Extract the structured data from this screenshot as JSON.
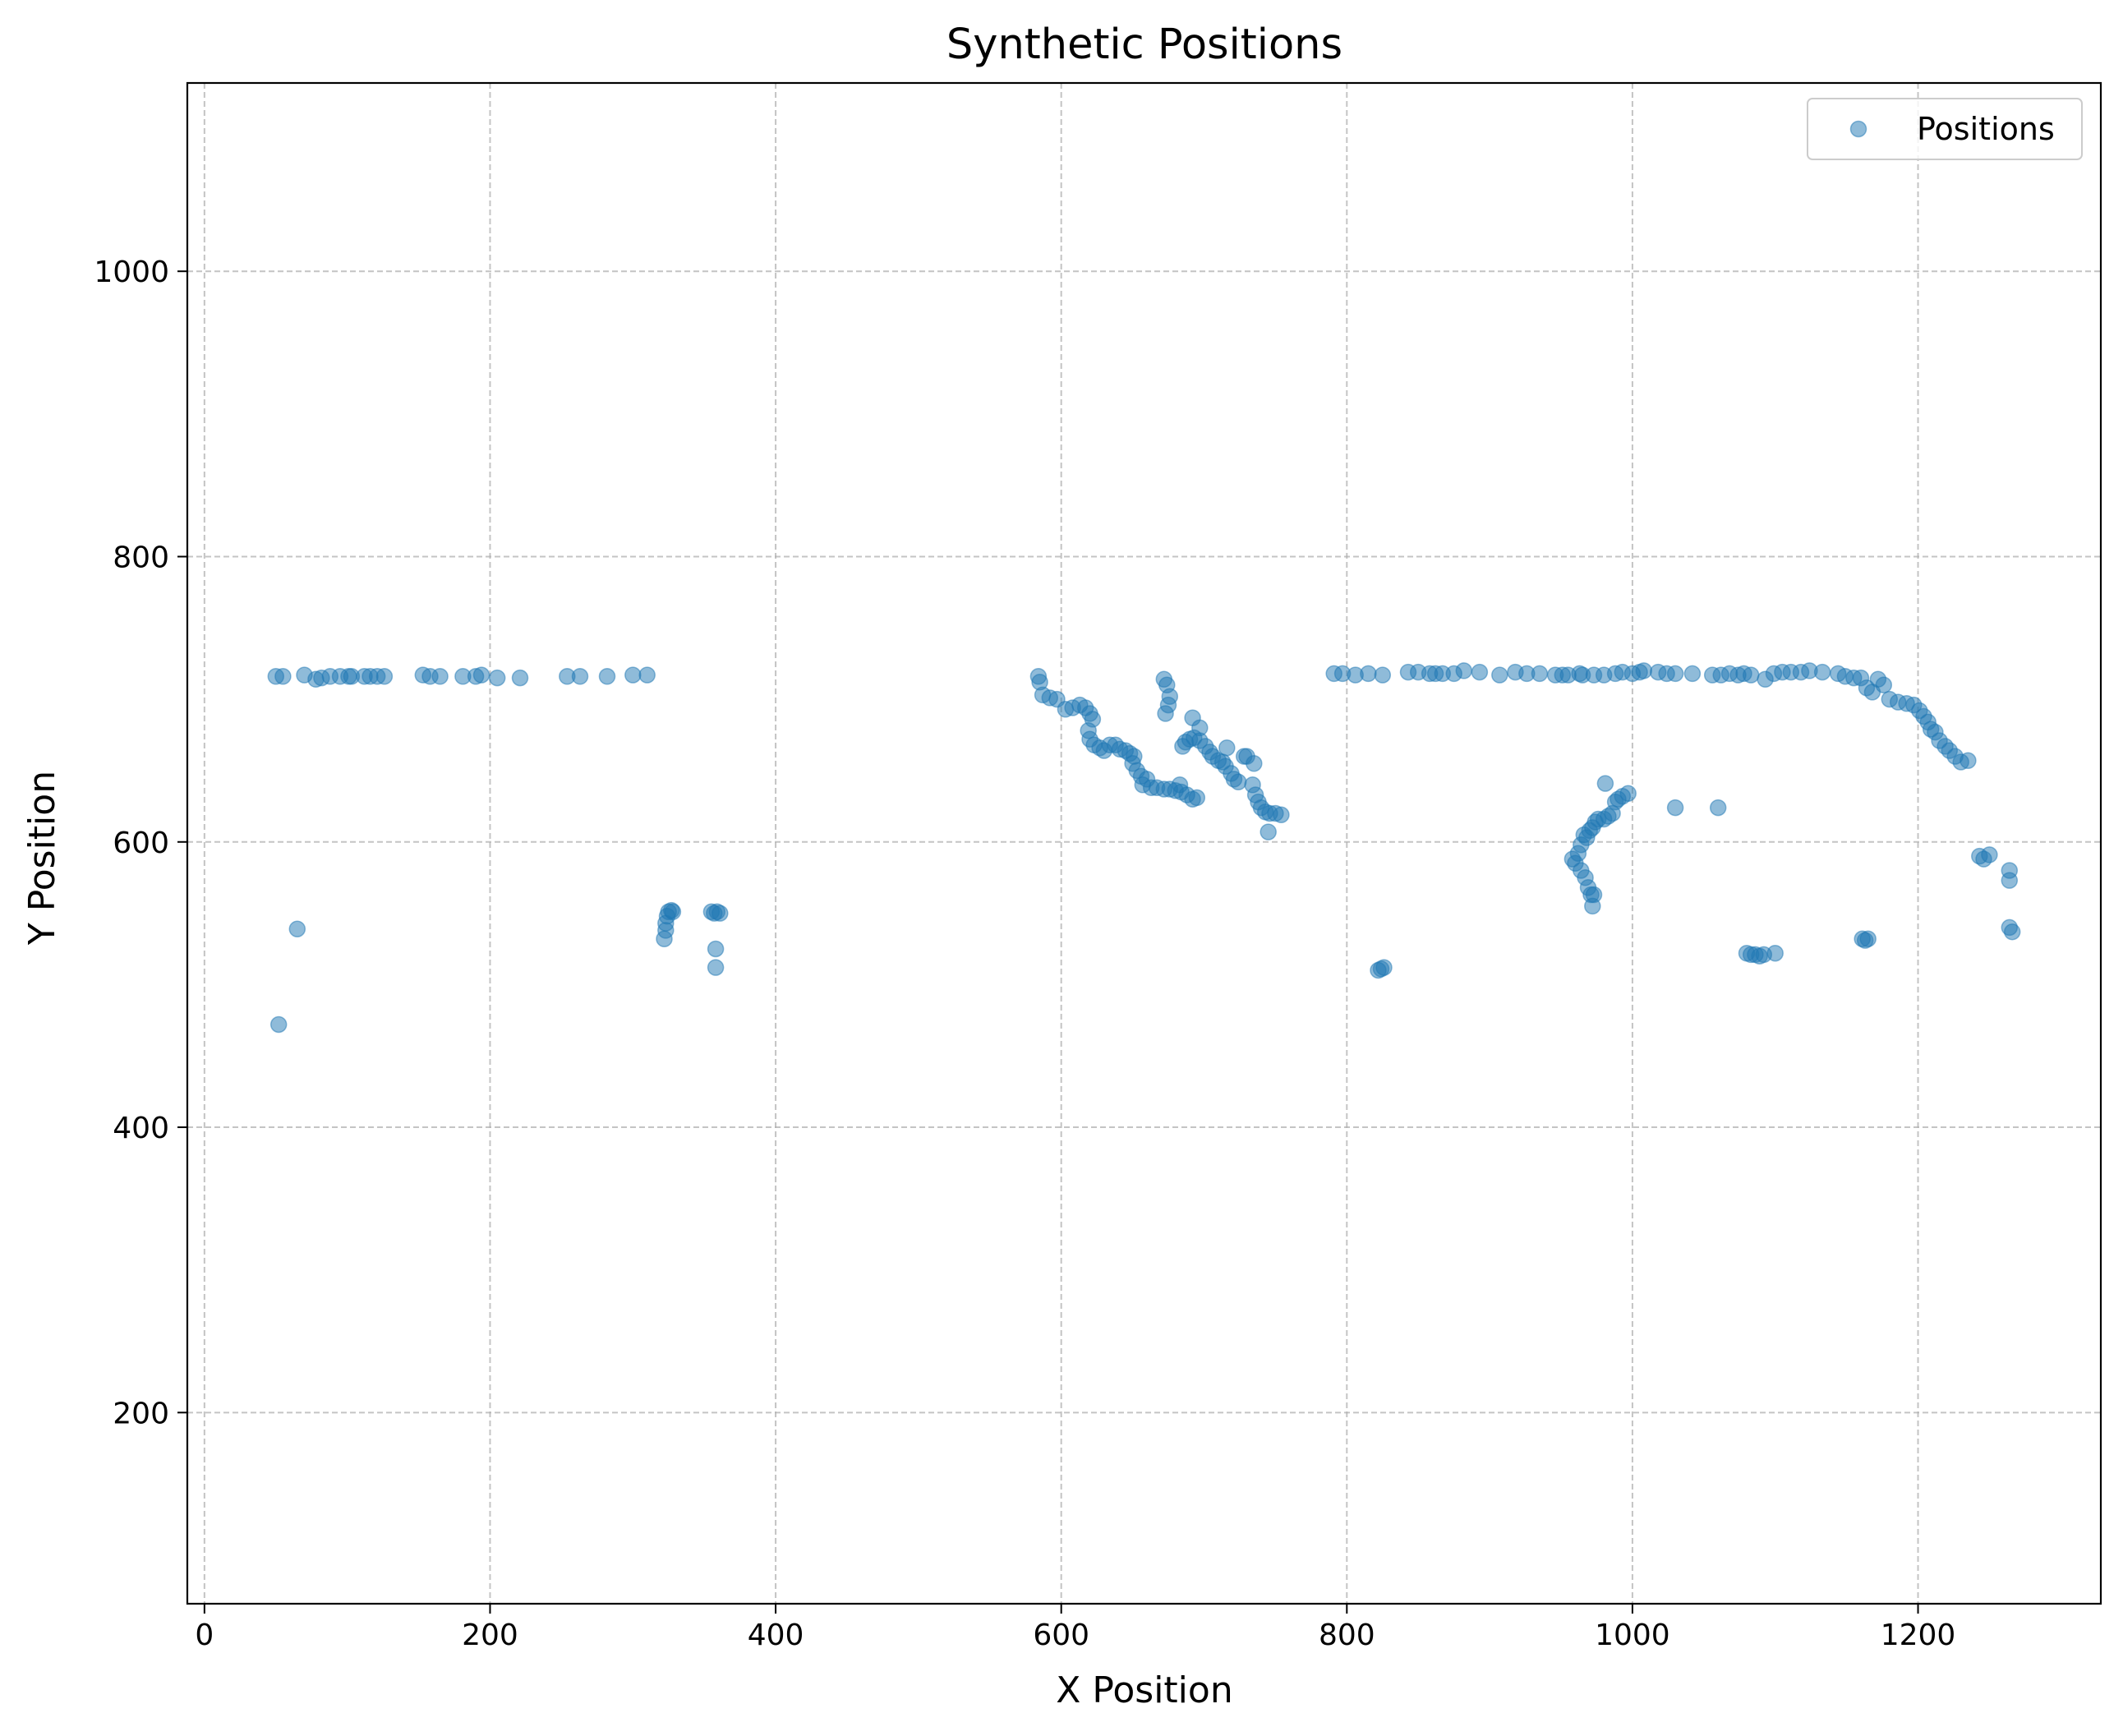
{
  "chart_data": {
    "type": "scatter",
    "title": "Synthetic Positions",
    "xlabel": "X Position",
    "ylabel": "Y Position",
    "xlim": [
      -12,
      1328
    ],
    "ylim": [
      66,
      1132
    ],
    "xticks": [
      0,
      200,
      400,
      600,
      800,
      1000,
      1200
    ],
    "yticks": [
      200,
      400,
      600,
      800,
      1000
    ],
    "grid": true,
    "legend_position": "top-right",
    "series": [
      {
        "name": "Positions",
        "color": "#1f77b4",
        "points": [
          [
            50,
            716
          ],
          [
            55,
            716
          ],
          [
            70,
            717
          ],
          [
            78,
            714
          ],
          [
            82,
            715
          ],
          [
            88,
            716
          ],
          [
            95,
            716
          ],
          [
            101,
            716
          ],
          [
            103,
            716
          ],
          [
            112,
            716
          ],
          [
            116,
            716
          ],
          [
            121,
            716
          ],
          [
            126,
            716
          ],
          [
            153,
            717
          ],
          [
            158,
            716
          ],
          [
            165,
            716
          ],
          [
            181,
            716
          ],
          [
            190,
            716
          ],
          [
            194,
            717
          ],
          [
            205,
            715
          ],
          [
            221,
            715
          ],
          [
            254,
            716
          ],
          [
            263,
            716
          ],
          [
            282,
            716
          ],
          [
            300,
            717
          ],
          [
            310,
            717
          ],
          [
            52,
            472
          ],
          [
            65,
            539
          ],
          [
            322,
            532
          ],
          [
            323,
            538
          ],
          [
            323,
            543
          ],
          [
            324,
            548
          ],
          [
            325,
            551
          ],
          [
            327,
            552
          ],
          [
            328,
            551
          ],
          [
            355,
            551
          ],
          [
            357,
            550
          ],
          [
            359,
            551
          ],
          [
            361,
            550
          ],
          [
            358,
            525
          ],
          [
            358,
            512
          ],
          [
            584,
            716
          ],
          [
            585,
            712
          ],
          [
            587,
            703
          ],
          [
            592,
            701
          ],
          [
            597,
            700
          ],
          [
            603,
            693
          ],
          [
            608,
            694
          ],
          [
            613,
            696
          ],
          [
            617,
            694
          ],
          [
            620,
            690
          ],
          [
            622,
            686
          ],
          [
            619,
            678
          ],
          [
            620,
            672
          ],
          [
            623,
            668
          ],
          [
            627,
            666
          ],
          [
            630,
            664
          ],
          [
            634,
            668
          ],
          [
            638,
            668
          ],
          [
            641,
            665
          ],
          [
            645,
            664
          ],
          [
            648,
            662
          ],
          [
            651,
            660
          ],
          [
            650,
            655
          ],
          [
            653,
            650
          ],
          [
            656,
            646
          ],
          [
            660,
            644
          ],
          [
            657,
            640
          ],
          [
            663,
            638
          ],
          [
            667,
            638
          ],
          [
            672,
            637
          ],
          [
            676,
            637
          ],
          [
            680,
            636
          ],
          [
            684,
            635
          ],
          [
            688,
            633
          ],
          [
            692,
            630
          ],
          [
            695,
            631
          ],
          [
            683,
            640
          ],
          [
            685,
            667
          ],
          [
            687,
            670
          ],
          [
            690,
            672
          ],
          [
            693,
            673
          ],
          [
            697,
            671
          ],
          [
            701,
            667
          ],
          [
            704,
            663
          ],
          [
            706,
            660
          ],
          [
            710,
            657
          ],
          [
            713,
            656
          ],
          [
            715,
            653
          ],
          [
            719,
            648
          ],
          [
            721,
            644
          ],
          [
            728,
            660
          ],
          [
            730,
            660
          ],
          [
            735,
            655
          ],
          [
            734,
            640
          ],
          [
            736,
            633
          ],
          [
            738,
            628
          ],
          [
            740,
            624
          ],
          [
            743,
            621
          ],
          [
            746,
            620
          ],
          [
            750,
            620
          ],
          [
            754,
            619
          ],
          [
            745,
            607
          ],
          [
            672,
            714
          ],
          [
            674,
            710
          ],
          [
            676,
            702
          ],
          [
            675,
            696
          ],
          [
            673,
            690
          ],
          [
            692,
            687
          ],
          [
            697,
            680
          ],
          [
            716,
            666
          ],
          [
            724,
            642
          ],
          [
            791,
            718
          ],
          [
            797,
            718
          ],
          [
            806,
            717
          ],
          [
            815,
            718
          ],
          [
            825,
            717
          ],
          [
            843,
            719
          ],
          [
            850,
            719
          ],
          [
            858,
            718
          ],
          [
            862,
            718
          ],
          [
            867,
            718
          ],
          [
            875,
            718
          ],
          [
            882,
            720
          ],
          [
            893,
            719
          ],
          [
            907,
            717
          ],
          [
            918,
            719
          ],
          [
            926,
            718
          ],
          [
            935,
            718
          ],
          [
            946,
            717
          ],
          [
            951,
            717
          ],
          [
            955,
            717
          ],
          [
            963,
            718
          ],
          [
            965,
            717
          ],
          [
            973,
            717
          ],
          [
            980,
            717
          ],
          [
            988,
            718
          ],
          [
            993,
            719
          ],
          [
            1000,
            718
          ],
          [
            1005,
            719
          ],
          [
            1008,
            720
          ],
          [
            1018,
            719
          ],
          [
            1024,
            718
          ],
          [
            1030,
            718
          ],
          [
            1042,
            718
          ],
          [
            1056,
            717
          ],
          [
            1062,
            717
          ],
          [
            1068,
            718
          ],
          [
            1074,
            717
          ],
          [
            1078,
            718
          ],
          [
            1083,
            717
          ],
          [
            1093,
            714
          ],
          [
            1099,
            718
          ],
          [
            1105,
            719
          ],
          [
            1111,
            719
          ],
          [
            1118,
            719
          ],
          [
            1124,
            720
          ],
          [
            1133,
            719
          ],
          [
            1144,
            718
          ],
          [
            1149,
            716
          ],
          [
            1155,
            715
          ],
          [
            1160,
            715
          ],
          [
            1164,
            708
          ],
          [
            1168,
            705
          ],
          [
            1172,
            714
          ],
          [
            1176,
            710
          ],
          [
            1180,
            700
          ],
          [
            1186,
            698
          ],
          [
            1192,
            697
          ],
          [
            1197,
            696
          ],
          [
            1201,
            692
          ],
          [
            1204,
            688
          ],
          [
            1207,
            684
          ],
          [
            1209,
            679
          ],
          [
            1212,
            677
          ],
          [
            1215,
            671
          ],
          [
            1219,
            667
          ],
          [
            1222,
            664
          ],
          [
            1226,
            660
          ],
          [
            1230,
            656
          ],
          [
            1235,
            657
          ],
          [
            958,
            588
          ],
          [
            960,
            585
          ],
          [
            962,
            592
          ],
          [
            964,
            598
          ],
          [
            966,
            605
          ],
          [
            968,
            603
          ],
          [
            970,
            608
          ],
          [
            972,
            610
          ],
          [
            974,
            614
          ],
          [
            976,
            616
          ],
          [
            980,
            616
          ],
          [
            983,
            618
          ],
          [
            986,
            620
          ],
          [
            988,
            628
          ],
          [
            990,
            630
          ],
          [
            993,
            632
          ],
          [
            997,
            634
          ],
          [
            981,
            641
          ],
          [
            964,
            580
          ],
          [
            967,
            575
          ],
          [
            969,
            568
          ],
          [
            971,
            563
          ],
          [
            973,
            563
          ],
          [
            972,
            555
          ],
          [
            1030,
            624
          ],
          [
            1060,
            624
          ],
          [
            822,
            510
          ],
          [
            824,
            511
          ],
          [
            826,
            512
          ],
          [
            1080,
            522
          ],
          [
            1083,
            521
          ],
          [
            1086,
            521
          ],
          [
            1089,
            520
          ],
          [
            1092,
            521
          ],
          [
            1100,
            522
          ],
          [
            1161,
            532
          ],
          [
            1163,
            531
          ],
          [
            1165,
            532
          ],
          [
            1243,
            590
          ],
          [
            1246,
            588
          ],
          [
            1250,
            591
          ],
          [
            1264,
            580
          ],
          [
            1264,
            573
          ],
          [
            1264,
            540
          ],
          [
            1266,
            537
          ]
        ]
      }
    ]
  }
}
